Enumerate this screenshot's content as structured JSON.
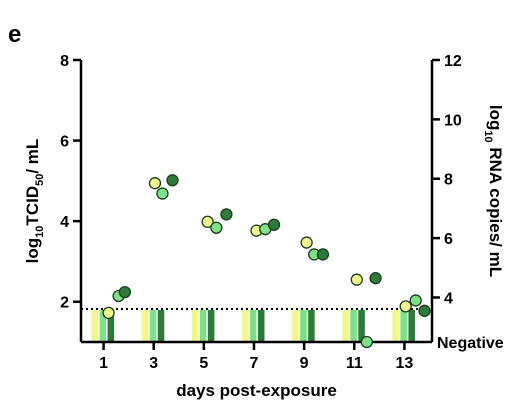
{
  "panel_label": "e",
  "chart_data": {
    "type": "scatter",
    "title": "",
    "xlabel": "days post-exposure",
    "ylabel_left": {
      "prefix": "log",
      "sub": "10",
      "main": "TCID",
      "main_sub": "50",
      "suffix": "/ mL"
    },
    "ylabel_right": {
      "prefix": "log",
      "sub": "10",
      "suffix": " RNA copies/ mL"
    },
    "xlim": [
      0.1,
      14.1
    ],
    "x_ticks": [
      1,
      3,
      5,
      7,
      9,
      11,
      13
    ],
    "x_tick_labels": [
      "1",
      "3",
      "5",
      "7",
      "9",
      "11",
      "13"
    ],
    "ylim_left": [
      1.0,
      8.0
    ],
    "y_ticks_left": [
      2,
      4,
      6,
      8
    ],
    "y_tick_labels_left": [
      "2",
      "4",
      "6",
      "8"
    ],
    "ylim_right": [
      2.5,
      12.0
    ],
    "y_ticks_right": [
      4,
      6,
      8,
      10,
      12
    ],
    "y_tick_labels_right": [
      "4",
      "6",
      "8",
      "10",
      "12"
    ],
    "detection_limit_left": 1.82,
    "negative_label": "Negative",
    "colors": [
      "#f0f78c",
      "#7fe08a",
      "#2e7a3a"
    ],
    "points": [
      {
        "x": 1.2,
        "y": 3.48,
        "color": "#f0f78c"
      },
      {
        "x": 1.6,
        "y": 4.05,
        "color": "#7fe08a"
      },
      {
        "x": 1.85,
        "y": 4.18,
        "color": "#2e7a3a"
      },
      {
        "x": 3.05,
        "y": 7.85,
        "color": "#f0f78c"
      },
      {
        "x": 3.35,
        "y": 7.5,
        "color": "#7fe08a"
      },
      {
        "x": 3.75,
        "y": 7.95,
        "color": "#2e7a3a"
      },
      {
        "x": 5.15,
        "y": 6.55,
        "color": "#f0f78c"
      },
      {
        "x": 5.5,
        "y": 6.35,
        "color": "#7fe08a"
      },
      {
        "x": 5.9,
        "y": 6.8,
        "color": "#2e7a3a"
      },
      {
        "x": 7.1,
        "y": 6.25,
        "color": "#f0f78c"
      },
      {
        "x": 7.45,
        "y": 6.3,
        "color": "#7fe08a"
      },
      {
        "x": 7.8,
        "y": 6.45,
        "color": "#2e7a3a"
      },
      {
        "x": 9.1,
        "y": 5.85,
        "color": "#f0f78c"
      },
      {
        "x": 9.4,
        "y": 5.45,
        "color": "#7fe08a"
      },
      {
        "x": 9.75,
        "y": 5.45,
        "color": "#2e7a3a"
      },
      {
        "x": 11.1,
        "y": 4.6,
        "color": "#f0f78c"
      },
      {
        "x": 11.5,
        "y": 2.5,
        "color": "#7fe08a"
      },
      {
        "x": 11.85,
        "y": 4.65,
        "color": "#2e7a3a"
      },
      {
        "x": 13.05,
        "y": 3.7,
        "color": "#f0f78c"
      },
      {
        "x": 13.45,
        "y": 3.9,
        "color": "#7fe08a"
      },
      {
        "x": 13.8,
        "y": 3.55,
        "color": "#2e7a3a"
      }
    ],
    "negative_bars": [
      {
        "day": 1,
        "colors": [
          "#f0f78c",
          "#7fe08a",
          "#2e7a3a"
        ]
      },
      {
        "day": 3,
        "colors": [
          "#f0f78c",
          "#7fe08a",
          "#2e7a3a"
        ]
      },
      {
        "day": 5,
        "colors": [
          "#f0f78c",
          "#7fe08a",
          "#2e7a3a"
        ]
      },
      {
        "day": 7,
        "colors": [
          "#f0f78c",
          "#7fe08a",
          "#2e7a3a"
        ]
      },
      {
        "day": 9,
        "colors": [
          "#f0f78c",
          "#7fe08a",
          "#2e7a3a"
        ]
      },
      {
        "day": 11,
        "colors": [
          "#f0f78c",
          "#7fe08a",
          "#2e7a3a"
        ]
      },
      {
        "day": 13,
        "colors": [
          "#f0f78c",
          "#7fe08a",
          "#2e7a3a"
        ]
      }
    ],
    "grid": false,
    "legend": "none"
  }
}
